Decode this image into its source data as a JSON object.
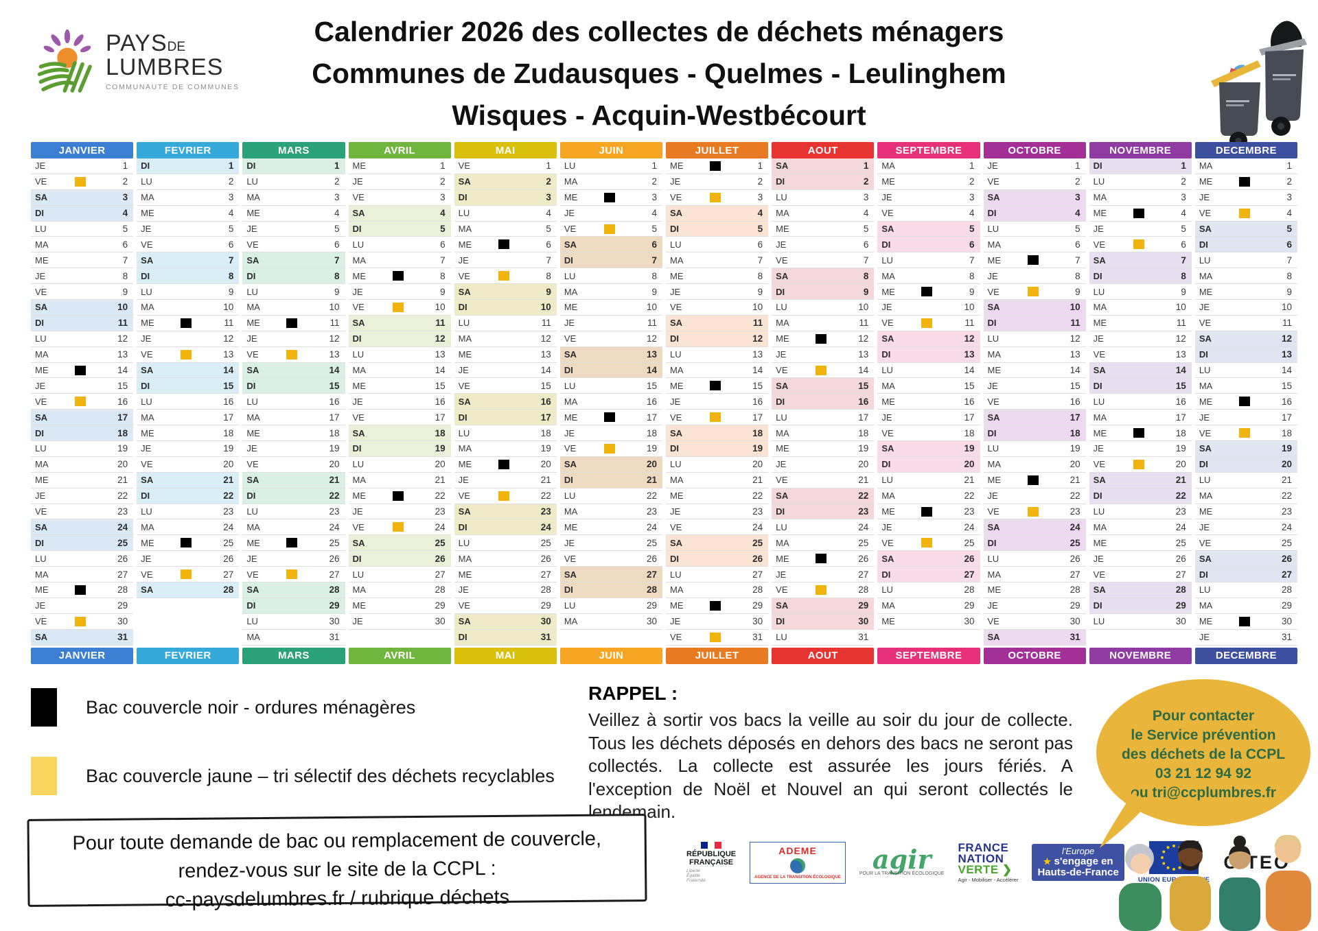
{
  "brand": {
    "pays": "PAYS",
    "de": "DE",
    "lumbres": "LUMBRES",
    "subtitle": "COMMUNAUTÉ DE COMMUNES"
  },
  "title": {
    "line1": "Calendrier 2026 des collectes de déchets ménagers",
    "line2": "Communes de Zudausques - Quelmes - Leulinghem",
    "line3": "Wisques - Acquin-Westbécourt"
  },
  "calendar": {
    "day_labels": [
      "LU",
      "MA",
      "ME",
      "JE",
      "VE",
      "SA",
      "DI"
    ],
    "marker_colors": {
      "black": "#000000",
      "yellow": "#f0b40d"
    },
    "months": [
      {
        "name": "JANVIER",
        "color": "#3b7ed2",
        "tint": "#dbe9f7",
        "start": 3,
        "days": 31,
        "black": [
          14,
          28
        ],
        "yellow": [
          2,
          16,
          30
        ]
      },
      {
        "name": "FEVRIER",
        "color": "#34a9da",
        "tint": "#d9eef6",
        "start": 6,
        "days": 28,
        "black": [
          11,
          25
        ],
        "yellow": [
          13,
          27
        ]
      },
      {
        "name": "MARS",
        "color": "#2aa179",
        "tint": "#daf0e5",
        "start": 6,
        "days": 31,
        "black": [
          11,
          25
        ],
        "yellow": [
          13,
          27
        ]
      },
      {
        "name": "AVRIL",
        "color": "#6fb53e",
        "tint": "#eaf0da",
        "start": 2,
        "days": 30,
        "black": [
          8,
          22
        ],
        "yellow": [
          10,
          24
        ]
      },
      {
        "name": "MAI",
        "color": "#d9c00d",
        "tint": "#efeac7",
        "start": 4,
        "days": 31,
        "black": [
          6,
          20
        ],
        "yellow": [
          8,
          22
        ]
      },
      {
        "name": "JUIN",
        "color": "#f7a623",
        "tint": "#eddac0",
        "start": 0,
        "days": 30,
        "black": [
          3,
          17
        ],
        "yellow": [
          5,
          19
        ]
      },
      {
        "name": "JUILLET",
        "color": "#e87a22",
        "tint": "#fbe4d4",
        "start": 2,
        "days": 31,
        "black": [
          1,
          15,
          29
        ],
        "yellow": [
          3,
          17,
          31
        ]
      },
      {
        "name": "AOUT",
        "color": "#e83431",
        "tint": "#f5d8d9",
        "start": 5,
        "days": 31,
        "black": [
          12,
          26
        ],
        "yellow": [
          14,
          28
        ]
      },
      {
        "name": "SEPTEMBRE",
        "color": "#e63078",
        "tint": "#f9dce7",
        "start": 1,
        "days": 30,
        "black": [
          9,
          23
        ],
        "yellow": [
          11,
          25
        ]
      },
      {
        "name": "OCTOBRE",
        "color": "#a23097",
        "tint": "#eedaf0",
        "start": 3,
        "days": 31,
        "black": [
          7,
          21
        ],
        "yellow": [
          9,
          23
        ]
      },
      {
        "name": "NOVEMBRE",
        "color": "#8f3ba1",
        "tint": "#e8dff0",
        "start": 6,
        "days": 30,
        "black": [
          4,
          18
        ],
        "yellow": [
          6,
          20
        ]
      },
      {
        "name": "DECEMBRE",
        "color": "#3d4f9f",
        "tint": "#dfe5f1",
        "start": 1,
        "days": 31,
        "black": [
          2,
          16,
          30
        ],
        "yellow": [
          4,
          18
        ]
      }
    ]
  },
  "legend": {
    "black": {
      "label": "Bac couvercle noir - ordures ménagères",
      "color": "#000000"
    },
    "yellow": {
      "label": "Bac couvercle jaune – tri sélectif des déchets recyclables",
      "color": "#f8d55e"
    }
  },
  "rappel": {
    "heading": "RAPPEL :",
    "body": "Veillez à sortir vos bacs la veille au soir du jour de collecte. Tous les déchets déposés en dehors des bacs ne seront pas collectés. La collecte est assurée les jours fériés.  A l'exception de Noël et Nouvel an qui seront collectés le lendemain."
  },
  "infobox": {
    "lines": [
      "Pour toute demande de bac ou remplacement de couvercle,",
      "rendez-vous sur le site de la CCPL :",
      "cc-paysdelumbres.fr / rubrique déchets"
    ]
  },
  "partners": {
    "rf_line1": "RÉPUBLIQUE",
    "rf_line2": "FRANÇAISE",
    "rf_motto1": "Liberté",
    "rf_motto2": "Égalité",
    "rf_motto3": "Fraternité",
    "ademe": "ADEME",
    "ademe_sub": "AGENCE DE LA TRANSITION ÉCOLOGIQUE",
    "agir": "agir",
    "agir_sub": "POUR LA TRANSITION ÉCOLOGIQUE",
    "fnv1": "FRANCE",
    "fnv2": "NATION",
    "fnv3": "VERTE ❯",
    "fnv_sub": "Agir - Mobiliser - Accélérer",
    "eur1": "l'Europe",
    "eur2": "s'engage en",
    "eur3": "Hauts-de-France",
    "ue": "UNION EUROPÉENNE",
    "citeo": "CITEO"
  },
  "bubble": {
    "bg": "#e9b53b",
    "text_color": "#2e6b44",
    "lines": [
      "Pour contacter",
      "le Service prévention",
      "des déchets de la CCPL",
      "03 21 12 94 92",
      "ou tri@ccplumbres.fr"
    ]
  }
}
